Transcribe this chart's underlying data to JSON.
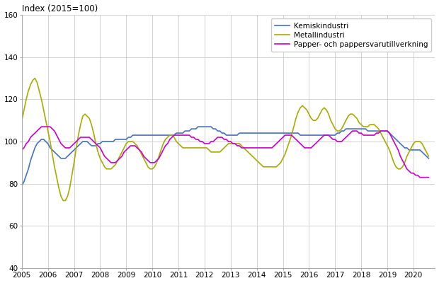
{
  "title": "Index (2015=100)",
  "ylim": [
    40,
    160
  ],
  "yticks": [
    40,
    60,
    80,
    100,
    120,
    140,
    160
  ],
  "xlim": [
    2005.0,
    2020.83
  ],
  "xticks": [
    2005,
    2006,
    2007,
    2008,
    2009,
    2010,
    2011,
    2012,
    2013,
    2014,
    2015,
    2016,
    2017,
    2018,
    2019,
    2020
  ],
  "legend": [
    "Kemiskindustri",
    "Metallindustri",
    "Papper- och pappersvarutillverkning"
  ],
  "colors": {
    "kemi": "#4472C4",
    "metall": "#AAAA00",
    "papper": "#CC00CC"
  },
  "line_widths": {
    "kemi": 1.2,
    "metall": 1.2,
    "papper": 1.2
  },
  "kemi": [
    79,
    81,
    84,
    87,
    91,
    94,
    97,
    99,
    100,
    101,
    101,
    100,
    99,
    97,
    96,
    95,
    94,
    93,
    92,
    92,
    92,
    93,
    94,
    95,
    96,
    97,
    98,
    99,
    100,
    100,
    100,
    99,
    98,
    98,
    98,
    99,
    99,
    100,
    100,
    100,
    100,
    100,
    100,
    101,
    101,
    101,
    101,
    101,
    101,
    102,
    102,
    103,
    103,
    103,
    103,
    103,
    103,
    103,
    103,
    103,
    103,
    103,
    103,
    103,
    103,
    103,
    103,
    103,
    103,
    103,
    103,
    104,
    104,
    104,
    104,
    105,
    105,
    105,
    106,
    106,
    106,
    107,
    107,
    107,
    107,
    107,
    107,
    107,
    106,
    106,
    105,
    105,
    104,
    104,
    103,
    103,
    103,
    103,
    103,
    103,
    104,
    104,
    104,
    104,
    104,
    104,
    104,
    104,
    104,
    104,
    104,
    104,
    104,
    104,
    104,
    104,
    104,
    104,
    104,
    104,
    104,
    104,
    104,
    104,
    104,
    104,
    104,
    104,
    103,
    103,
    103,
    103,
    103,
    103,
    103,
    103,
    103,
    103,
    103,
    103,
    103,
    103,
    103,
    103,
    103,
    104,
    104,
    105,
    105,
    106,
    106,
    106,
    106,
    106,
    106,
    106,
    106,
    106,
    106,
    105,
    105,
    105,
    105,
    105,
    105,
    105,
    105,
    105,
    105,
    104,
    103,
    102,
    101,
    100,
    99,
    98,
    97,
    97,
    96,
    96,
    96,
    96,
    96,
    96,
    95,
    94,
    93,
    92
  ],
  "metall": [
    110,
    115,
    120,
    124,
    127,
    129,
    130,
    128,
    124,
    120,
    115,
    110,
    105,
    100,
    94,
    88,
    83,
    78,
    74,
    72,
    72,
    74,
    78,
    84,
    90,
    97,
    103,
    108,
    112,
    113,
    112,
    111,
    108,
    104,
    99,
    95,
    92,
    90,
    88,
    87,
    87,
    87,
    88,
    89,
    91,
    93,
    95,
    97,
    99,
    100,
    100,
    100,
    99,
    98,
    96,
    94,
    92,
    90,
    88,
    87,
    87,
    88,
    90,
    93,
    96,
    99,
    101,
    102,
    103,
    103,
    102,
    100,
    99,
    98,
    97,
    97,
    97,
    97,
    97,
    97,
    97,
    97,
    97,
    97,
    97,
    97,
    96,
    95,
    95,
    95,
    95,
    95,
    96,
    97,
    98,
    99,
    99,
    99,
    99,
    99,
    99,
    98,
    97,
    96,
    95,
    94,
    93,
    92,
    91,
    90,
    89,
    88,
    88,
    88,
    88,
    88,
    88,
    88,
    89,
    90,
    92,
    94,
    97,
    100,
    103,
    107,
    111,
    114,
    116,
    117,
    116,
    115,
    113,
    111,
    110,
    110,
    111,
    113,
    115,
    116,
    115,
    113,
    110,
    108,
    106,
    105,
    105,
    106,
    108,
    110,
    112,
    113,
    113,
    112,
    111,
    109,
    108,
    107,
    107,
    107,
    108,
    108,
    108,
    107,
    106,
    104,
    102,
    100,
    98,
    96,
    93,
    90,
    88,
    87,
    87,
    88,
    90,
    93,
    95,
    97,
    99,
    100,
    100,
    100,
    99,
    97,
    95,
    93
  ],
  "papper": [
    96,
    97,
    99,
    100,
    102,
    103,
    104,
    105,
    106,
    107,
    107,
    107,
    107,
    107,
    106,
    105,
    103,
    101,
    99,
    98,
    97,
    97,
    97,
    98,
    99,
    100,
    101,
    102,
    102,
    102,
    102,
    102,
    101,
    100,
    99,
    98,
    97,
    95,
    93,
    92,
    91,
    90,
    90,
    90,
    91,
    92,
    93,
    95,
    96,
    97,
    98,
    98,
    98,
    97,
    96,
    95,
    93,
    92,
    91,
    90,
    90,
    90,
    91,
    92,
    94,
    96,
    98,
    99,
    101,
    102,
    103,
    103,
    103,
    103,
    103,
    103,
    103,
    103,
    102,
    102,
    101,
    101,
    100,
    100,
    99,
    99,
    99,
    100,
    100,
    101,
    102,
    102,
    102,
    101,
    101,
    100,
    100,
    99,
    99,
    98,
    98,
    97,
    97,
    97,
    97,
    97,
    97,
    97,
    97,
    97,
    97,
    97,
    97,
    97,
    97,
    97,
    98,
    99,
    100,
    101,
    102,
    103,
    103,
    103,
    103,
    102,
    101,
    100,
    99,
    98,
    97,
    97,
    97,
    97,
    98,
    99,
    100,
    101,
    102,
    103,
    103,
    103,
    102,
    101,
    101,
    100,
    100,
    100,
    101,
    102,
    103,
    104,
    105,
    105,
    105,
    104,
    104,
    103,
    103,
    103,
    103,
    103,
    103,
    104,
    104,
    105,
    105,
    105,
    105,
    104,
    102,
    100,
    98,
    96,
    93,
    91,
    89,
    87,
    86,
    85,
    85,
    84,
    84,
    83,
    83,
    83,
    83,
    83
  ]
}
